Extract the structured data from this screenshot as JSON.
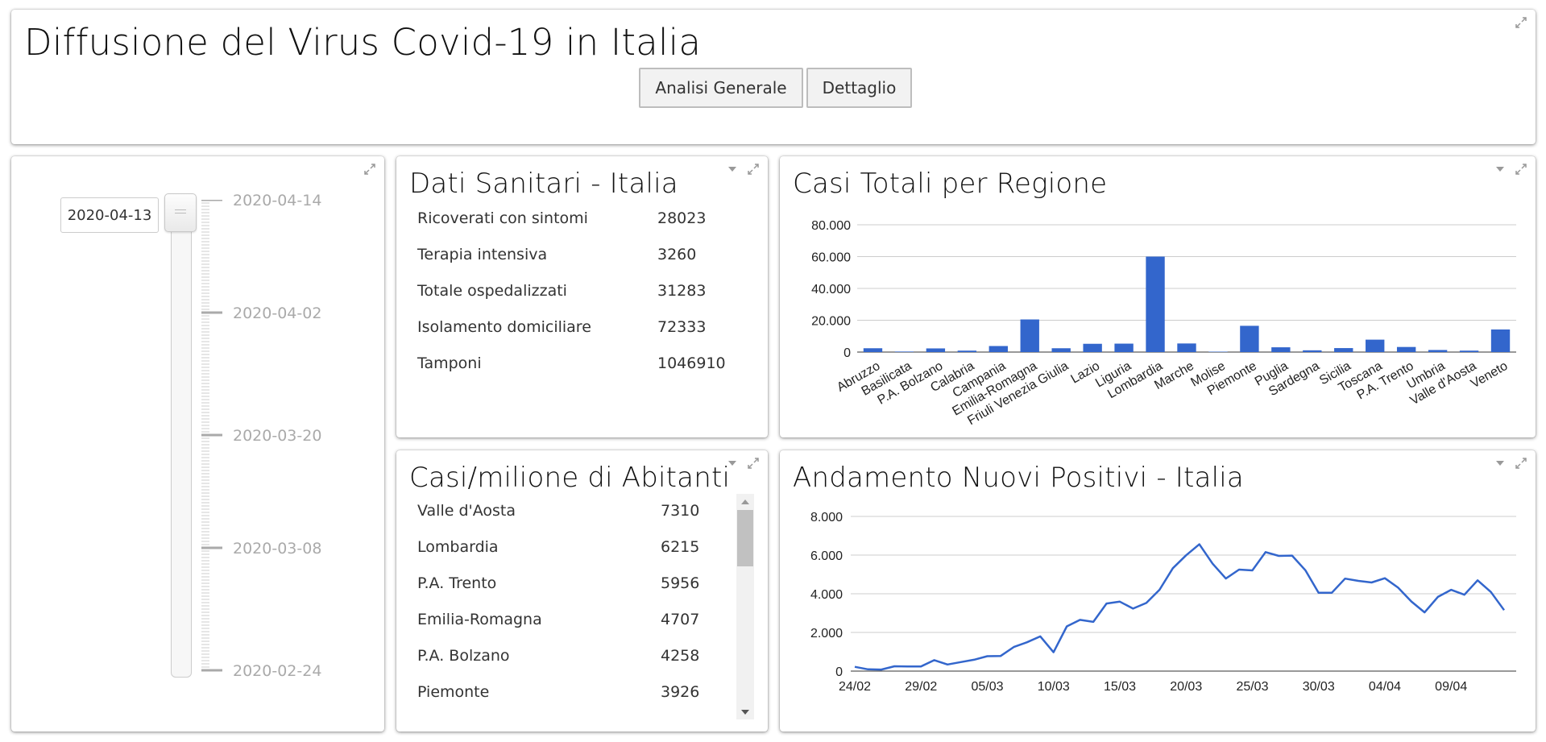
{
  "header": {
    "title": "Diffusione del Virus Covid-19 in Italia",
    "buttons": [
      "Analisi Generale",
      "Dettaglio"
    ]
  },
  "slider": {
    "current": "2020-04-13",
    "labels": [
      "2020-04-14",
      "2020-04-02",
      "2020-03-20",
      "2020-03-08",
      "2020-02-24"
    ]
  },
  "dati_sanitari": {
    "title": "Dati Sanitari - Italia",
    "rows": [
      {
        "label": "Ricoverati con sintomi",
        "value": "28023"
      },
      {
        "label": "Terapia intensiva",
        "value": "3260"
      },
      {
        "label": "Totale ospedalizzati",
        "value": "31283"
      },
      {
        "label": "Isolamento domiciliare",
        "value": "72333"
      },
      {
        "label": "Tamponi",
        "value": "1046910"
      }
    ]
  },
  "casi_milione": {
    "title": "Casi/milione di Abitanti",
    "rows": [
      {
        "label": "Valle d'Aosta",
        "value": "7310"
      },
      {
        "label": "Lombardia",
        "value": "6215"
      },
      {
        "label": "P.A. Trento",
        "value": "5956"
      },
      {
        "label": "Emilia-Romagna",
        "value": "4707"
      },
      {
        "label": "P.A. Bolzano",
        "value": "4258"
      },
      {
        "label": "Piemonte",
        "value": "3926"
      }
    ]
  },
  "icons": {
    "expand": "expand-arrows-icon",
    "menu": "caret-down-icon",
    "scroll_up": "scroll-up-arrow-icon",
    "scroll_down": "scroll-down-arrow-icon"
  },
  "colors": {
    "series": "#3366cc",
    "grid": "#cccccc",
    "baseline": "#333333"
  },
  "chart_data": [
    {
      "type": "bar",
      "title": "Casi Totali per Regione",
      "categories": [
        "Abruzzo",
        "Basilicata",
        "P.A. Bolzano",
        "Calabria",
        "Campania",
        "Emilia-Romagna",
        "Friuli Venezia Giulia",
        "Lazio",
        "Liguria",
        "Lombardia",
        "Marche",
        "Molise",
        "Piemonte",
        "Puglia",
        "Sardegna",
        "Sicilia",
        "Toscana",
        "P.A. Trento",
        "Umbria",
        "Valle d'Aosta",
        "Veneto"
      ],
      "values": [
        2400,
        330,
        2300,
        900,
        3800,
        20500,
        2400,
        5200,
        5300,
        60000,
        5400,
        250,
        16500,
        3000,
        1100,
        2500,
        7800,
        3200,
        1300,
        900,
        14200
      ],
      "yticks": [
        "0",
        "20.000",
        "40.000",
        "60.000",
        "80.000"
      ],
      "ylim": [
        0,
        80000
      ],
      "grid": true,
      "legend": "none"
    },
    {
      "type": "line",
      "title": "Andamento Nuovi Positivi - Italia",
      "x": [
        "24/02",
        "25/02",
        "26/02",
        "27/02",
        "28/02",
        "29/02",
        "01/03",
        "02/03",
        "03/03",
        "04/03",
        "05/03",
        "06/03",
        "07/03",
        "08/03",
        "09/03",
        "10/03",
        "11/03",
        "12/03",
        "13/03",
        "14/03",
        "15/03",
        "16/03",
        "17/03",
        "18/03",
        "19/03",
        "20/03",
        "21/03",
        "22/03",
        "23/03",
        "24/03",
        "25/03",
        "26/03",
        "27/03",
        "28/03",
        "29/03",
        "30/03",
        "31/03",
        "01/04",
        "02/04",
        "03/04",
        "04/04",
        "05/04",
        "06/04",
        "07/04",
        "08/04",
        "09/04",
        "10/04",
        "11/04",
        "12/04",
        "13/04"
      ],
      "values": [
        221,
        93,
        78,
        250,
        238,
        240,
        566,
        342,
        466,
        587,
        769,
        778,
        1247,
        1492,
        1797,
        977,
        2313,
        2651,
        2547,
        3497,
        3590,
        3233,
        3526,
        4207,
        5322,
        5986,
        6557,
        5560,
        4789,
        5249,
        5210,
        6153,
        5959,
        5974,
        5217,
        4050,
        4053,
        4782,
        4668,
        4585,
        4805,
        4316,
        3599,
        3039,
        3836,
        4204,
        3951,
        4694,
        4092,
        3153
      ],
      "xticks": [
        "24/02",
        "29/02",
        "05/03",
        "10/03",
        "15/03",
        "20/03",
        "25/03",
        "30/03",
        "04/04",
        "09/04"
      ],
      "yticks": [
        "0",
        "2.000",
        "4.000",
        "6.000",
        "8.000"
      ],
      "ylim": [
        0,
        8000
      ],
      "grid": true,
      "legend": "none"
    }
  ]
}
